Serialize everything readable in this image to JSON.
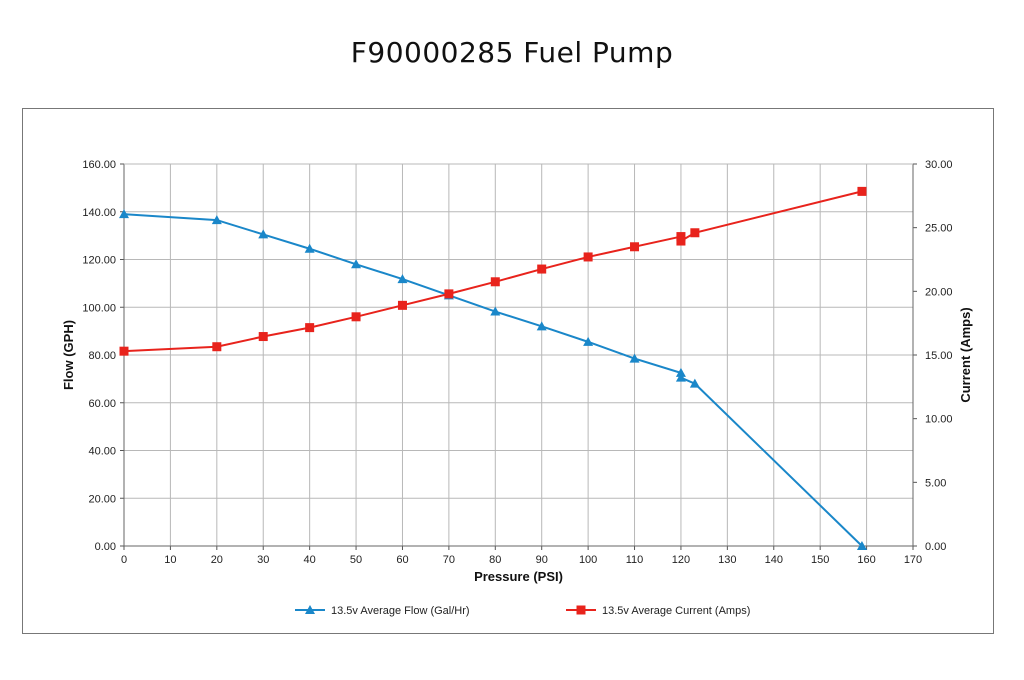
{
  "chart_data": {
    "type": "line",
    "title": "F90000285 Fuel Pump",
    "xlabel": "Pressure (PSI)",
    "ylabel": "Flow (GPH)",
    "y2label": "Current (Amps)",
    "xlim": [
      0,
      170
    ],
    "ylim": [
      0,
      160
    ],
    "y2lim": [
      0,
      30
    ],
    "x_ticks": [
      "0",
      "10",
      "20",
      "30",
      "40",
      "50",
      "60",
      "70",
      "80",
      "90",
      "100",
      "110",
      "120",
      "130",
      "140",
      "150",
      "160",
      "170"
    ],
    "y_ticks": [
      "0.00",
      "20.00",
      "40.00",
      "60.00",
      "80.00",
      "100.00",
      "120.00",
      "140.00",
      "160.00"
    ],
    "y2_ticks": [
      "0.00",
      "5.00",
      "10.00",
      "15.00",
      "20.00",
      "25.00",
      "30.00"
    ],
    "grid": true,
    "legend_position": "bottom",
    "series": [
      {
        "name": "13.5v Average Flow (Gal/Hr)",
        "axis": "left",
        "color": "#1a87c9",
        "marker": "triangle",
        "x": [
          0,
          20,
          30,
          40,
          50,
          60,
          70,
          80,
          90,
          100,
          110,
          120,
          120,
          123,
          159
        ],
        "y": [
          139.0,
          136.5,
          130.5,
          124.5,
          118.0,
          111.8,
          105.0,
          98.2,
          92.0,
          85.5,
          78.5,
          72.5,
          70.5,
          68.0,
          0
        ]
      },
      {
        "name": "13.5v Average Current (Amps)",
        "axis": "right",
        "color": "#e8231c",
        "marker": "square",
        "x": [
          0,
          20,
          30,
          40,
          50,
          60,
          70,
          80,
          90,
          100,
          110,
          120,
          120,
          123,
          159
        ],
        "y": [
          15.3,
          15.65,
          16.45,
          17.15,
          18.0,
          18.9,
          19.8,
          20.75,
          21.75,
          22.7,
          23.5,
          24.3,
          23.95,
          24.6,
          27.85
        ]
      }
    ]
  }
}
